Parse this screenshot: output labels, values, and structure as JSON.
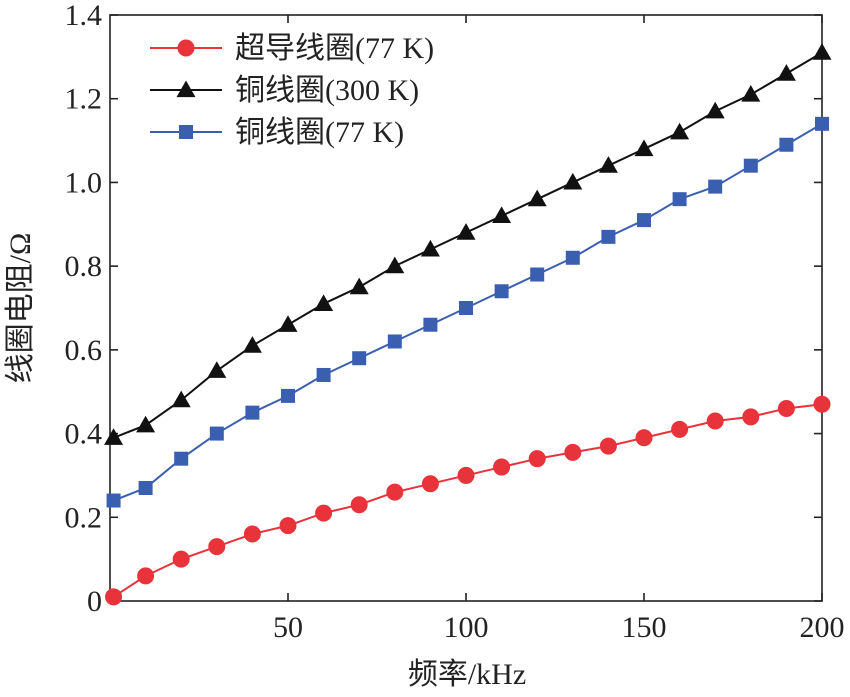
{
  "chart_data": {
    "type": "line",
    "xlabel": "频率/kHz",
    "ylabel": "线圈电阻/Ω",
    "xlim": [
      0,
      200
    ],
    "ylim": [
      0,
      1.4
    ],
    "xticks": [
      50,
      100,
      150,
      200
    ],
    "xtick_labels": [
      "50",
      "100",
      "150",
      "200"
    ],
    "yticks": [
      0,
      0.2,
      0.4,
      0.6,
      0.8,
      1.0,
      1.2,
      1.4
    ],
    "ytick_labels": [
      "0",
      "0.2",
      "0.4",
      "0.6",
      "0.8",
      "1.0",
      "1.2",
      "1.4"
    ],
    "grid": false,
    "legend_position": "top-left",
    "x": [
      1,
      10,
      20,
      30,
      40,
      50,
      60,
      70,
      80,
      90,
      100,
      110,
      120,
      130,
      140,
      150,
      160,
      170,
      180,
      190,
      200
    ],
    "series": [
      {
        "name": "超导线圈(77 K)",
        "color": "#e8333a",
        "marker": "circle",
        "values": [
          0.01,
          0.06,
          0.1,
          0.13,
          0.16,
          0.18,
          0.21,
          0.23,
          0.26,
          0.28,
          0.3,
          0.32,
          0.34,
          0.355,
          0.37,
          0.39,
          0.41,
          0.43,
          0.44,
          0.46,
          0.47
        ]
      },
      {
        "name": "铜线圈(300 K)",
        "color": "#111111",
        "marker": "triangle",
        "values": [
          0.39,
          0.42,
          0.48,
          0.55,
          0.61,
          0.66,
          0.71,
          0.75,
          0.8,
          0.84,
          0.88,
          0.92,
          0.96,
          1.0,
          1.04,
          1.08,
          1.12,
          1.17,
          1.21,
          1.26,
          1.31
        ]
      },
      {
        "name": "铜线圈(77 K)",
        "color": "#3a5fb0",
        "marker": "square",
        "values": [
          0.24,
          0.27,
          0.34,
          0.4,
          0.45,
          0.49,
          0.54,
          0.58,
          0.62,
          0.66,
          0.7,
          0.74,
          0.78,
          0.82,
          0.87,
          0.91,
          0.96,
          0.99,
          1.04,
          1.09,
          1.14
        ]
      }
    ]
  }
}
